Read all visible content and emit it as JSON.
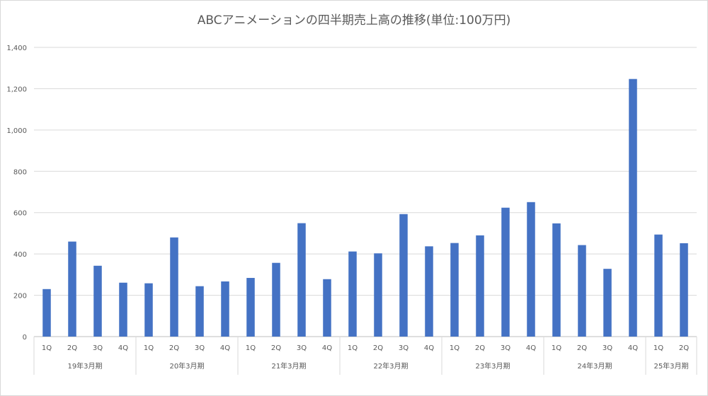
{
  "chart_data": {
    "type": "bar",
    "title": "ABCアニメーションの四半期売上高の推移(単位:100万円)",
    "ylim": [
      0,
      1400
    ],
    "yticks": [
      "0",
      "200",
      "400",
      "600",
      "800",
      "1,000",
      "1,200",
      "1,400"
    ],
    "grid": true,
    "bar_color": "#4472c4",
    "groups": [
      {
        "label": "19年3月期",
        "quarters": [
          "1Q",
          "2Q",
          "3Q",
          "4Q"
        ],
        "values": [
          230,
          460,
          343,
          261
        ]
      },
      {
        "label": "20年3月期",
        "quarters": [
          "1Q",
          "2Q",
          "3Q",
          "4Q"
        ],
        "values": [
          258,
          480,
          244,
          267
        ]
      },
      {
        "label": "21年3月期",
        "quarters": [
          "1Q",
          "2Q",
          "3Q",
          "4Q"
        ],
        "values": [
          284,
          357,
          549,
          278
        ]
      },
      {
        "label": "22年3月期",
        "quarters": [
          "1Q",
          "2Q",
          "3Q",
          "4Q"
        ],
        "values": [
          412,
          403,
          593,
          437
        ]
      },
      {
        "label": "23年3月期",
        "quarters": [
          "1Q",
          "2Q",
          "3Q",
          "4Q"
        ],
        "values": [
          453,
          490,
          624,
          651
        ]
      },
      {
        "label": "24年3月期",
        "quarters": [
          "1Q",
          "2Q",
          "3Q",
          "4Q"
        ],
        "values": [
          548,
          443,
          328,
          1247
        ]
      },
      {
        "label": "25年3月期",
        "quarters": [
          "1Q",
          "2Q"
        ],
        "values": [
          494,
          452
        ]
      }
    ]
  }
}
